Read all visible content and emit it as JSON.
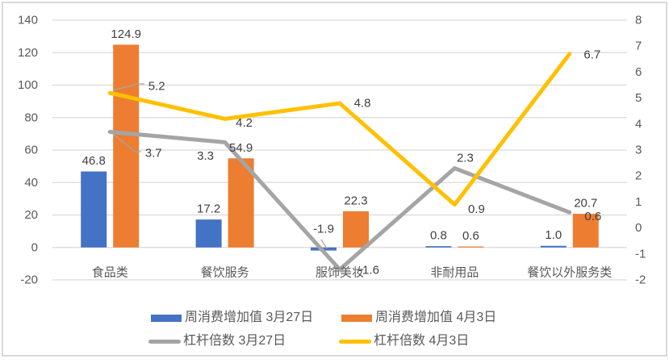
{
  "chart_data": {
    "type": "bar",
    "subtype": "combo-bar-line-dual-axis",
    "title": "",
    "categories": [
      "食品类",
      "餐饮服务",
      "服饰美妆",
      "非耐用品",
      "餐饮以外服务类"
    ],
    "series": [
      {
        "name": "周消费增加值 3月27日",
        "kind": "bar",
        "axis": "left",
        "color": "#4472C4",
        "values": [
          46.8,
          17.2,
          -1.9,
          0.8,
          1.0
        ]
      },
      {
        "name": "周消费增加值 4月3日",
        "kind": "bar",
        "axis": "left",
        "color": "#ED7D31",
        "values": [
          124.9,
          54.9,
          22.3,
          0.6,
          20.7
        ]
      },
      {
        "name": "杠杆倍数 3月27日",
        "kind": "line",
        "axis": "right",
        "color": "#A5A5A5",
        "values": [
          3.7,
          3.3,
          -1.6,
          2.3,
          0.6
        ]
      },
      {
        "name": "杠杆倍数 4月3日",
        "kind": "line",
        "axis": "right",
        "color": "#FFC000",
        "values": [
          5.2,
          4.2,
          4.8,
          0.9,
          6.7
        ]
      }
    ],
    "left_axis": {
      "min": -20,
      "max": 140,
      "step": 20,
      "ticks": [
        140,
        120,
        100,
        80,
        60,
        40,
        20,
        0,
        -20
      ]
    },
    "right_axis": {
      "min": -2,
      "max": 8,
      "step": 1,
      "ticks": [
        8,
        7,
        6,
        5,
        4,
        3,
        2,
        1,
        0,
        -1,
        -2
      ]
    },
    "grid": true,
    "legend_position": "bottom",
    "data_labels": true
  },
  "colors": {
    "background": "#FFFFFF",
    "grid": "#D9D9D9",
    "border": "#D9D9D9",
    "axis_text": "#595959",
    "data_label": "#404040",
    "leader": "#A6A6A6"
  }
}
